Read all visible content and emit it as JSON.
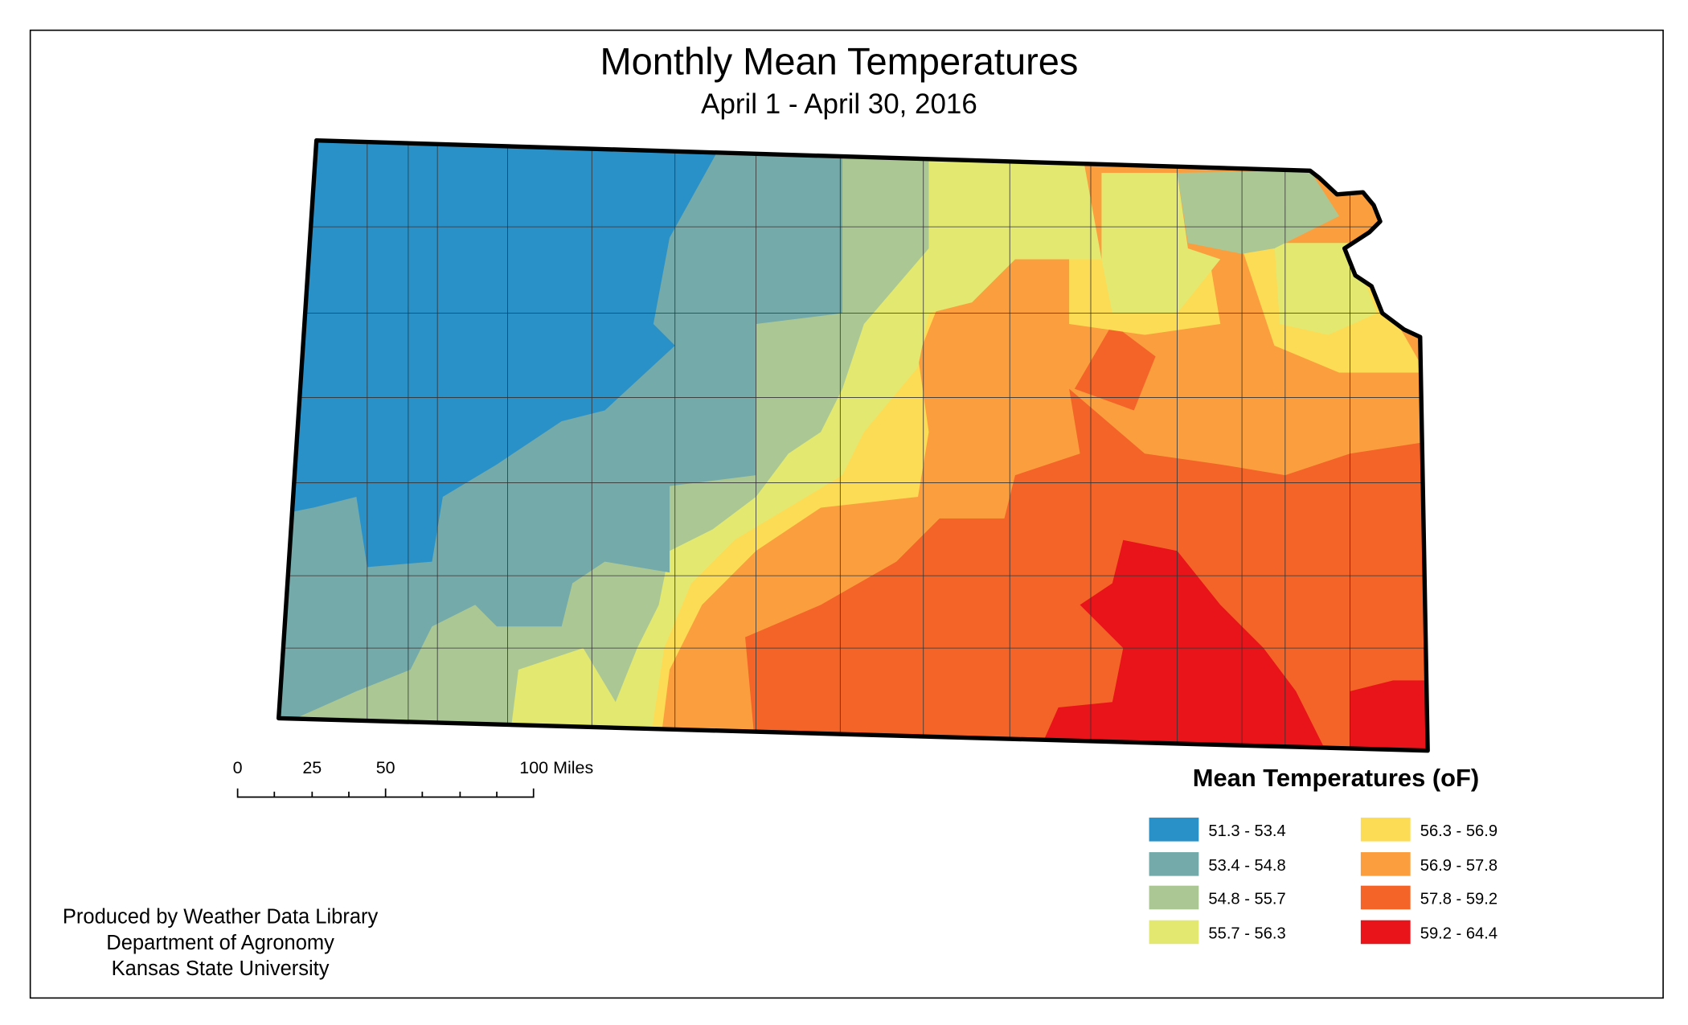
{
  "title": "Monthly Mean Temperatures",
  "subtitle": "April 1 - April 30, 2016",
  "legend": {
    "title": "Mean Temperatures (oF)",
    "classes": [
      {
        "label": "51.3 - 53.4",
        "color": "#2a91c8"
      },
      {
        "label": "53.4 - 54.8",
        "color": "#74aaaa"
      },
      {
        "label": "54.8 - 55.7",
        "color": "#abc894"
      },
      {
        "label": "55.7 - 56.3",
        "color": "#e3e871"
      },
      {
        "label": "56.3 - 56.9",
        "color": "#fcdc55"
      },
      {
        "label": "56.9 - 57.8",
        "color": "#fb9f3e"
      },
      {
        "label": "57.8 - 59.2",
        "color": "#f46428"
      },
      {
        "label": "59.2 - 64.4",
        "color": "#e8141a"
      }
    ]
  },
  "scale_bar": {
    "labels": [
      "0",
      "25",
      "50",
      "100 Miles"
    ]
  },
  "credits": [
    "Produced by Weather Data Library",
    "Department of Agronomy",
    "Kansas State University"
  ]
}
